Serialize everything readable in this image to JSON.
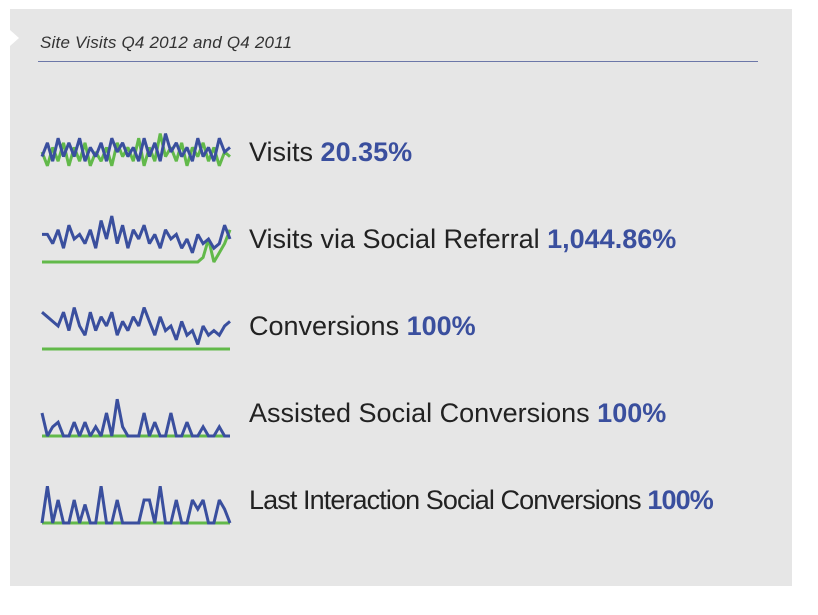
{
  "title": "Site Visits Q4 2012 and Q4 2011",
  "colors": {
    "q4_2012": "#3a4f9e",
    "q4_2011": "#62b94a",
    "panel": "#e6e6e6",
    "rule": "#6c77a8"
  },
  "chart_data": [
    {
      "type": "line",
      "label": "Visits",
      "change": "20.35%",
      "ylim": [
        0,
        10
      ],
      "series": [
        {
          "color": "#3a4f9e",
          "values": [
            4,
            7,
            3,
            8,
            4,
            7,
            4,
            8,
            3,
            6,
            4,
            7,
            3,
            8,
            5,
            7,
            4,
            6,
            3,
            8,
            4,
            7,
            3,
            9,
            5,
            7,
            4,
            6,
            3,
            8,
            4,
            6,
            3,
            8,
            5,
            6
          ]
        },
        {
          "color": "#62b94a",
          "values": [
            5,
            2,
            6,
            3,
            7,
            2,
            6,
            3,
            7,
            2,
            5,
            3,
            6,
            2,
            7,
            4,
            6,
            3,
            8,
            2,
            6,
            3,
            9,
            4,
            6,
            3,
            7,
            2,
            6,
            4,
            7,
            3,
            6,
            2,
            5,
            4
          ]
        }
      ]
    },
    {
      "type": "line",
      "label": "Visits via Social Referral",
      "change": "1,044.86%",
      "ylim": [
        0,
        10
      ],
      "series": [
        {
          "color": "#3a4f9e",
          "values": [
            6,
            6,
            4,
            7,
            3,
            8,
            5,
            6,
            4,
            7,
            3,
            9,
            5,
            10,
            4,
            8,
            3,
            7,
            5,
            8,
            4,
            6,
            3,
            7,
            5,
            6,
            3,
            5,
            2,
            6,
            4,
            5,
            3,
            4,
            8,
            5
          ]
        },
        {
          "color": "#62b94a",
          "values": [
            0,
            0,
            0,
            0,
            0,
            0,
            0,
            0,
            0,
            0,
            0,
            0,
            0,
            0,
            0,
            0,
            0,
            0,
            0,
            0,
            0,
            0,
            0,
            0,
            0,
            0,
            0,
            0,
            0,
            0,
            1,
            5,
            0,
            2,
            4,
            7
          ]
        }
      ]
    },
    {
      "type": "line",
      "label": "Conversions",
      "change": "100%",
      "ylim": [
        0,
        10
      ],
      "series": [
        {
          "color": "#3a4f9e",
          "values": [
            8,
            7,
            6,
            5,
            8,
            4,
            9,
            5,
            3,
            8,
            4,
            7,
            5,
            8,
            3,
            6,
            4,
            7,
            5,
            9,
            6,
            3,
            7,
            4,
            5,
            2,
            6,
            3,
            4,
            1,
            5,
            3,
            4,
            3,
            5,
            6
          ]
        },
        {
          "color": "#62b94a",
          "values": [
            0,
            0,
            0,
            0,
            0,
            0,
            0,
            0,
            0,
            0,
            0,
            0,
            0,
            0,
            0,
            0,
            0,
            0,
            0,
            0,
            0,
            0,
            0,
            0,
            0,
            0,
            0,
            0,
            0,
            0,
            0,
            0,
            0,
            0,
            0,
            0
          ]
        }
      ]
    },
    {
      "type": "line",
      "label": "Assisted Social Conversions",
      "change": "100%",
      "ylim": [
        0,
        10
      ],
      "series": [
        {
          "color": "#3a4f9e",
          "values": [
            5,
            0,
            2,
            3,
            0,
            0,
            3,
            0,
            3,
            0,
            2,
            0,
            5,
            0,
            8,
            2,
            0,
            0,
            0,
            5,
            0,
            3,
            0,
            0,
            5,
            0,
            0,
            3,
            0,
            0,
            2,
            0,
            0,
            2,
            0,
            0
          ]
        },
        {
          "color": "#62b94a",
          "values": [
            0,
            0,
            0,
            0,
            0,
            0,
            0,
            0,
            0,
            0,
            0,
            0,
            0,
            0,
            0,
            0,
            0,
            0,
            0,
            0,
            0,
            0,
            0,
            0,
            0,
            0,
            0,
            0,
            0,
            0,
            0,
            0,
            0,
            0,
            0,
            0
          ]
        }
      ]
    },
    {
      "type": "line",
      "label": "Last Interaction Social Conversions",
      "change": "100%",
      "ylim": [
        0,
        10
      ],
      "series": [
        {
          "color": "#3a4f9e",
          "values": [
            0,
            8,
            0,
            5,
            0,
            0,
            5,
            0,
            4,
            0,
            0,
            8,
            0,
            0,
            5,
            0,
            0,
            0,
            0,
            5,
            5,
            0,
            8,
            0,
            0,
            5,
            0,
            0,
            5,
            3,
            5,
            0,
            0,
            5,
            3,
            0
          ]
        },
        {
          "color": "#62b94a",
          "values": [
            0,
            0,
            0,
            0,
            0,
            0,
            0,
            0,
            0,
            0,
            0,
            0,
            0,
            0,
            0,
            0,
            0,
            0,
            0,
            0,
            0,
            0,
            0,
            0,
            0,
            0,
            0,
            0,
            0,
            0,
            0,
            0,
            0,
            0,
            0,
            0
          ]
        }
      ]
    }
  ]
}
